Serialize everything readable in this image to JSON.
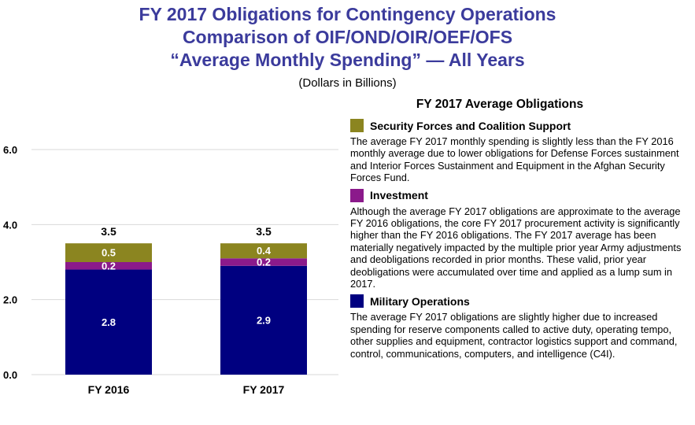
{
  "title": {
    "line1": "FY 2017 Obligations for Contingency Operations",
    "line2": "Comparison of OIF/OND/OIR/OEF/OFS",
    "line3": "“Average Monthly Spending” — All Years",
    "subtitle": "(Dollars in Billions)"
  },
  "chart_data": {
    "type": "bar",
    "stacked": true,
    "categories": [
      "FY 2016",
      "FY 2017"
    ],
    "series": [
      {
        "name": "Military Operations",
        "values": [
          2.8,
          2.9
        ],
        "color": "#000080"
      },
      {
        "name": "Investment",
        "values": [
          0.2,
          0.2
        ],
        "color": "#8b1a8b"
      },
      {
        "name": "Security Forces and Coalition Support",
        "values": [
          0.5,
          0.4
        ],
        "color": "#8b8520"
      }
    ],
    "totals": [
      3.5,
      3.5
    ],
    "yticks": [
      "0.0",
      "2.0",
      "4.0",
      "6.0"
    ],
    "ylim": [
      0,
      6
    ],
    "grid": true
  },
  "panel": {
    "title": "FY 2017 Average Obligations",
    "sections": [
      {
        "title": "Security Forces and Coalition Support",
        "color": "#8b8520",
        "text": "The average FY 2017 monthly spending is slightly less than the FY 2016 monthly average due to lower obligations for Defense Forces sustainment and Interior Forces Sustainment and Equipment in the Afghan Security Forces Fund."
      },
      {
        "title": "Investment",
        "color": "#8b1a8b",
        "text": "Although the average FY 2017 obligations are approximate to the average FY 2016 obligations, the core FY 2017 procurement activity is significantly higher than the FY 2016 obligations. The FY 2017 average has been materially negatively impacted by the multiple prior year Army adjustments and deobligations recorded in prior months.  These valid, prior year deobligations were accumulated over time and applied as a lump sum in 2017."
      },
      {
        "title": "Military Operations",
        "color": "#000080",
        "text": "The average FY 2017 obligations are slightly higher due to increased spending for reserve components called to active duty, operating tempo, other supplies and equipment, contractor logistics support and command, control, communications, computers, and intelligence (C4I)."
      }
    ]
  }
}
